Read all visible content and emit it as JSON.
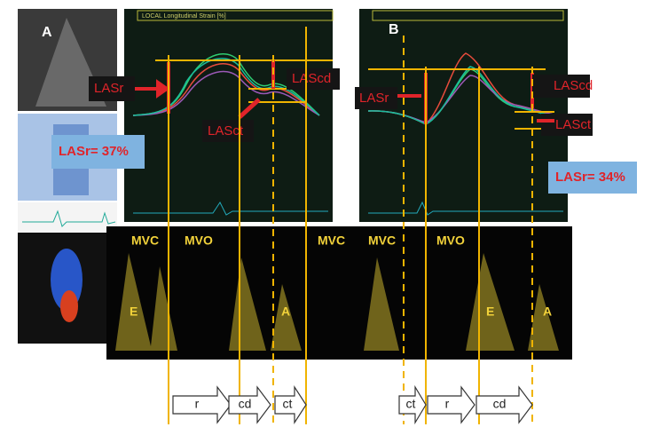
{
  "panel_a": {
    "label": "A",
    "plot_title": "LOCAL Longitudinal Strain [%]",
    "lasr": "LASr",
    "lascd": "LAScd",
    "lasct": "LASct",
    "lasr_value": "LASr= 37%",
    "events": [
      "MVC",
      "MVO",
      "MVC"
    ],
    "waves": [
      "E",
      "A"
    ],
    "phases": [
      "r",
      "cd",
      "ct"
    ]
  },
  "panel_b": {
    "label": "B",
    "lasr": "LASr",
    "lascd": "LAScd",
    "lasct": "LASct",
    "lasr_value": "LASr= 34%",
    "events": [
      "MVC",
      "MVO"
    ],
    "waves": [
      "E",
      "A"
    ],
    "phases": [
      "ct",
      "r",
      "cd"
    ]
  }
}
